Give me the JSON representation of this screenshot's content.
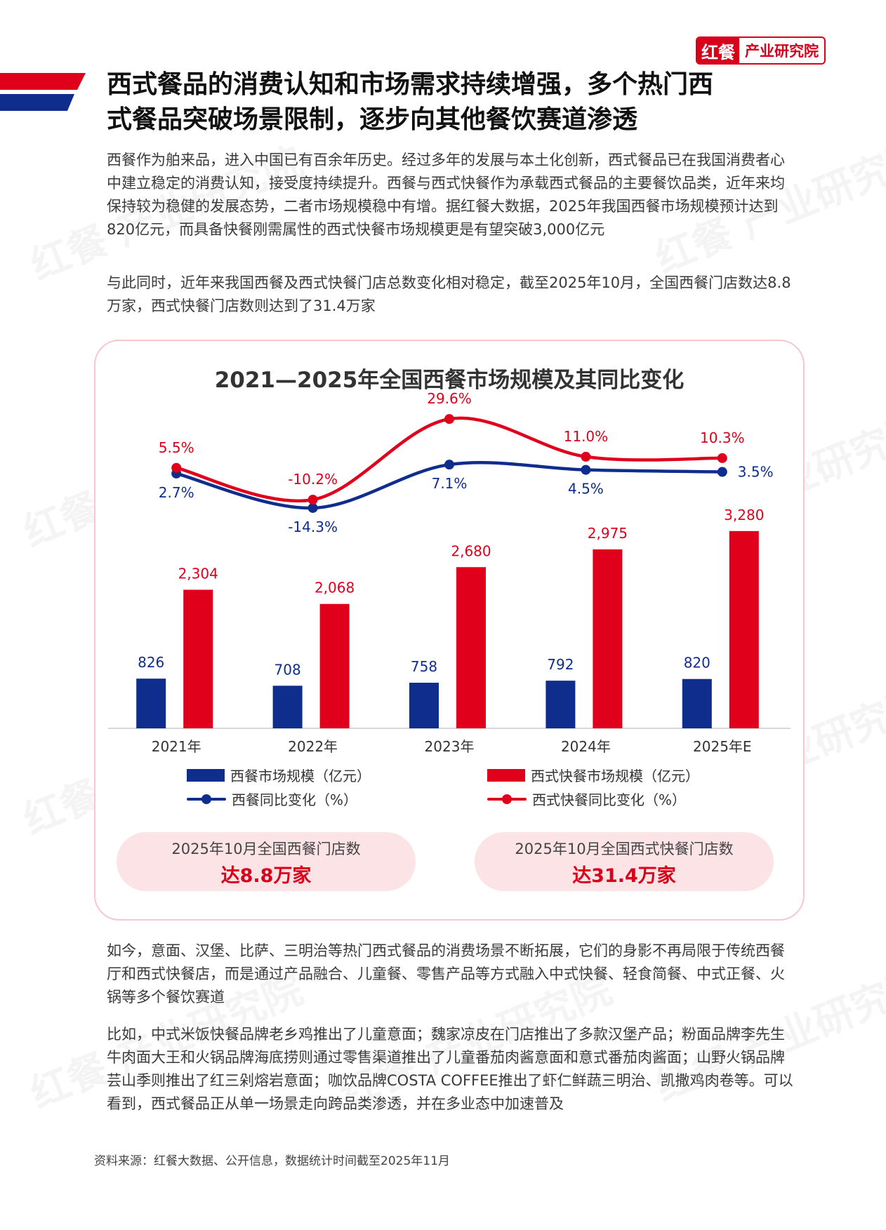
{
  "brand": {
    "logo_red": "红餐",
    "logo_text": "产业研究院",
    "watermark": "红餐 产业研究院"
  },
  "heading": {
    "line1": "西式餐品的消费认知和市场需求持续增强，多个热门西",
    "line2": "式餐品突破场景限制，逐步向其他餐饮赛道渗透"
  },
  "paragraphs": {
    "p1": "西餐作为舶来品，进入中国已有百余年历史。经过多年的发展与本土化创新，西式餐品已在我国消费者心中建立稳定的消费认知，接受度持续提升。西餐与西式快餐作为承载西式餐品的主要餐饮品类，近年来均保持较为稳健的发展态势，二者市场规模稳中有增。据红餐大数据，2025年我国西餐市场规模预计达到820亿元，而具备快餐刚需属性的西式快餐市场规模更是有望突破3,000亿元",
    "p2": "与此同时，近年来我国西餐及西式快餐门店总数变化相对稳定，截至2025年10月，全国西餐门店数达8.8万家，西式快餐门店数则达到了31.4万家",
    "p3": "如今，意面、汉堡、比萨、三明治等热门西式餐品的消费场景不断拓展，它们的身影不再局限于传统西餐厅和西式快餐店，而是通过产品融合、儿童餐、零售产品等方式融入中式快餐、轻食简餐、中式正餐、火锅等多个餐饮赛道",
    "p4": "比如，中式米饭快餐品牌老乡鸡推出了儿童意面；魏家凉皮在门店推出了多款汉堡产品；粉面品牌李先生牛肉面大王和火锅品牌海底捞则通过零售渠道推出了儿童番茄肉酱意面和意式番茄肉酱面；山野火锅品牌芸山季则推出了红三剁熔岩意面；咖饮品牌COSTA COFFEE推出了虾仁鲜蔬三明治、凯撒鸡肉卷等。可以看到，西式餐品正从单一场景走向跨品类渗透，并在多业态中加速普及"
  },
  "chart_data": {
    "type": "bar",
    "title": "2021—2025年全国西餐市场规模及其同比变化",
    "categories": [
      "2021年",
      "2022年",
      "2023年",
      "2024年",
      "2025年E"
    ],
    "series": [
      {
        "name": "西餐市场规模（亿元）",
        "kind": "bar",
        "color": "#0f2d8c",
        "values": [
          826,
          708,
          758,
          792,
          820
        ],
        "labels": [
          "826",
          "708",
          "758",
          "792",
          "820"
        ]
      },
      {
        "name": "西式快餐市场规模（亿元）",
        "kind": "bar",
        "color": "#e0001b",
        "values": [
          2304,
          2068,
          2680,
          2975,
          3280
        ],
        "labels": [
          "2,304",
          "2,068",
          "2,680",
          "2,975",
          "3,280"
        ]
      },
      {
        "name": "西餐同比变化（%）",
        "kind": "line",
        "color": "#0f2d8c",
        "values": [
          2.7,
          -14.3,
          7.1,
          4.5,
          3.5
        ],
        "labels": [
          "2.7%",
          "-14.3%",
          "7.1%",
          "4.5%",
          "3.5%"
        ]
      },
      {
        "name": "西式快餐同比变化（%）",
        "kind": "line",
        "color": "#e0001b",
        "values": [
          5.5,
          -10.2,
          29.6,
          11.0,
          10.3
        ],
        "labels": [
          "5.5%",
          "-10.2%",
          "29.6%",
          "11.0%",
          "10.3%"
        ]
      }
    ],
    "legend": "bottom"
  },
  "stats": {
    "left_label": "2025年10月全国西餐门店数",
    "left_value": "达8.8万家",
    "right_label": "2025年10月全国西式快餐门店数",
    "right_value": "达31.4万家"
  },
  "source": "资料来源：红餐大数据、公开信息，数据统计时间截至2025年11月",
  "colors": {
    "red": "#e0001b",
    "navy": "#0f2d8c",
    "pink": "#fbe3e6"
  }
}
